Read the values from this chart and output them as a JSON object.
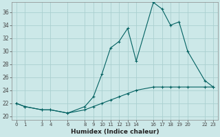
{
  "xlabel": "Humidex (Indice chaleur)",
  "background_color": "#cce8e8",
  "grid_color": "#aacfcf",
  "line_color": "#006060",
  "x_positions": [
    0,
    1,
    3,
    4,
    6,
    8,
    9,
    10,
    11,
    12,
    13,
    14,
    16,
    17,
    18,
    19,
    20,
    22,
    23
  ],
  "x_ticks_labels": [
    "0",
    "1",
    "3",
    "4",
    "6",
    "8",
    "9",
    "10",
    "11",
    "12",
    "13",
    "14",
    "16",
    "17",
    "18",
    "19",
    "20",
    "22",
    "23"
  ],
  "series1_x": [
    0,
    1,
    3,
    4,
    6,
    8,
    9,
    10,
    11,
    12,
    13,
    14,
    16,
    17,
    18,
    19,
    20,
    22,
    23
  ],
  "series1_y": [
    22.0,
    21.5,
    21.0,
    21.0,
    20.5,
    21.0,
    21.5,
    22.0,
    22.5,
    23.0,
    23.5,
    24.0,
    24.5,
    24.5,
    24.5,
    24.5,
    24.5,
    24.5,
    24.5
  ],
  "series2_x": [
    0,
    1,
    3,
    4,
    6,
    8,
    9,
    10,
    11,
    12,
    13,
    14,
    16,
    17,
    18,
    19,
    20,
    22,
    23
  ],
  "series2_y": [
    22.0,
    21.5,
    21.0,
    21.0,
    20.5,
    21.5,
    23.0,
    26.5,
    30.5,
    31.5,
    33.5,
    28.5,
    37.5,
    36.5,
    34.0,
    34.5,
    30.0,
    25.5,
    24.5
  ],
  "ylim": [
    19.5,
    37.5
  ],
  "xlim": [
    -0.5,
    23.5
  ],
  "ytick_vals": [
    20,
    22,
    24,
    26,
    28,
    30,
    32,
    34,
    36
  ],
  "ytick_labels": [
    "20",
    "22",
    "24",
    "26",
    "28",
    "30",
    "32",
    "34",
    "36"
  ]
}
